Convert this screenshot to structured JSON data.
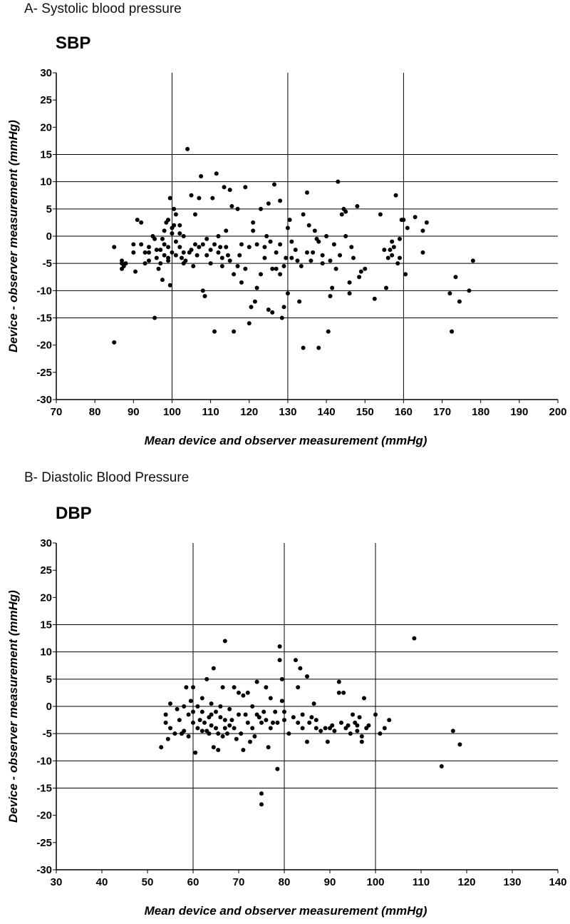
{
  "captions": {
    "a": "A-  Systolic blood pressure",
    "b": "B-  Diastolic Blood Pressure"
  },
  "colors": {
    "points": "#000000",
    "grid": "#000000"
  },
  "chart_data": [
    {
      "type": "scatter",
      "title": "SBP",
      "xlabel": "Mean device and observer measurement (mmHg)",
      "ylabel": "Device - observer measurement (mmHg)",
      "xlim": [
        70,
        200
      ],
      "ylim": [
        -30,
        30
      ],
      "xticks": [
        70,
        80,
        90,
        100,
        110,
        120,
        130,
        140,
        150,
        160,
        170,
        180,
        190,
        200
      ],
      "yticks": [
        30,
        25,
        20,
        15,
        10,
        5,
        0,
        -5,
        -10,
        -15,
        -20,
        -25,
        -30
      ],
      "hgrid": [
        15,
        10,
        5,
        0,
        -5,
        -10,
        -15
      ],
      "vgrid": [
        100,
        130,
        160
      ],
      "points": [
        [
          85,
          -19.5
        ],
        [
          85,
          -2
        ],
        [
          87,
          -4.5
        ],
        [
          87,
          -5
        ],
        [
          87.5,
          -5.5
        ],
        [
          88,
          -5
        ],
        [
          87,
          -6
        ],
        [
          90,
          -1.5
        ],
        [
          90,
          -3
        ],
        [
          90.5,
          -6.5
        ],
        [
          91,
          3
        ],
        [
          92,
          2.5
        ],
        [
          92,
          -1.5
        ],
        [
          93,
          -3
        ],
        [
          93,
          -5
        ],
        [
          94,
          -2
        ],
        [
          94,
          -3
        ],
        [
          94,
          -4.5
        ],
        [
          95,
          0
        ],
        [
          95.5,
          -0.5
        ],
        [
          95.5,
          -15
        ],
        [
          96,
          -4
        ],
        [
          96,
          -2.5
        ],
        [
          96.5,
          -6
        ],
        [
          97,
          -2.5
        ],
        [
          97,
          -5
        ],
        [
          97.5,
          -8
        ],
        [
          97.5,
          -0.5
        ],
        [
          98,
          -1.5
        ],
        [
          98,
          -3.5
        ],
        [
          98,
          1
        ],
        [
          98.5,
          2.5
        ],
        [
          99,
          -4
        ],
        [
          99,
          -2
        ],
        [
          99,
          -4.5
        ],
        [
          99,
          3
        ],
        [
          99.5,
          7
        ],
        [
          99.5,
          -9
        ],
        [
          100,
          -3
        ],
        [
          100,
          1.5
        ],
        [
          100,
          0.5
        ],
        [
          100.5,
          5
        ],
        [
          100.5,
          2
        ],
        [
          101,
          -1
        ],
        [
          101,
          -3.5
        ],
        [
          101,
          4
        ],
        [
          102,
          -2
        ],
        [
          102,
          0.5
        ],
        [
          102,
          2
        ],
        [
          102.5,
          -4
        ],
        [
          103,
          -5
        ],
        [
          103,
          -3
        ],
        [
          103,
          0
        ],
        [
          103.5,
          -4.5
        ],
        [
          104,
          16
        ],
        [
          104.5,
          -3
        ],
        [
          105,
          -2.5
        ],
        [
          105,
          7.5
        ],
        [
          105.5,
          -5.5
        ],
        [
          106,
          -1.5
        ],
        [
          106,
          4
        ],
        [
          106.5,
          -3.5
        ],
        [
          107,
          7
        ],
        [
          107,
          -2
        ],
        [
          107.5,
          11
        ],
        [
          108,
          -10
        ],
        [
          108,
          -1.5
        ],
        [
          108.5,
          -11
        ],
        [
          109,
          -3.5
        ],
        [
          109,
          -0.5
        ],
        [
          110,
          -2.5
        ],
        [
          110,
          -5
        ],
        [
          110.5,
          7
        ],
        [
          111,
          -17.5
        ],
        [
          111,
          -1.5
        ],
        [
          111.5,
          11.5
        ],
        [
          112,
          -3
        ],
        [
          112,
          0
        ],
        [
          112.5,
          -2
        ],
        [
          113,
          -5.5
        ],
        [
          113,
          -4
        ],
        [
          113.5,
          9
        ],
        [
          114,
          -2
        ],
        [
          114,
          1
        ],
        [
          114.5,
          -3.5
        ],
        [
          115,
          8.5
        ],
        [
          115,
          -4.5
        ],
        [
          115.5,
          5.5
        ],
        [
          116,
          -7
        ],
        [
          116,
          -17.5
        ],
        [
          117,
          5
        ],
        [
          117,
          -5.5
        ],
        [
          117.5,
          -3.5
        ],
        [
          118,
          -8.5
        ],
        [
          118,
          -1.5
        ],
        [
          119,
          -6
        ],
        [
          119,
          9
        ],
        [
          120,
          -2
        ],
        [
          120,
          -16
        ],
        [
          120.5,
          -13
        ],
        [
          121,
          2.5
        ],
        [
          121,
          1
        ],
        [
          121.5,
          -12
        ],
        [
          122,
          -1.5
        ],
        [
          122,
          -9.5
        ],
        [
          123,
          -7
        ],
        [
          123,
          5
        ],
        [
          124,
          -2
        ],
        [
          124,
          -4
        ],
        [
          124.5,
          0
        ],
        [
          125,
          -13.5
        ],
        [
          125,
          6
        ],
        [
          125.5,
          -1
        ],
        [
          126,
          -6
        ],
        [
          126,
          -14
        ],
        [
          126.5,
          9.5
        ],
        [
          127,
          -3
        ],
        [
          127,
          -6
        ],
        [
          128,
          -1.5
        ],
        [
          128,
          -7
        ],
        [
          128,
          6.5
        ],
        [
          128.5,
          -15
        ],
        [
          129,
          -5.5
        ],
        [
          129,
          -13
        ],
        [
          129.5,
          -4
        ],
        [
          130,
          -10.5
        ],
        [
          130,
          1.5
        ],
        [
          130.5,
          3
        ],
        [
          131,
          -4
        ],
        [
          131,
          -1
        ],
        [
          132,
          -2.5
        ],
        [
          132.5,
          -4.5
        ],
        [
          133,
          -12
        ],
        [
          133.5,
          -5.5
        ],
        [
          134,
          4
        ],
        [
          134,
          -20.5
        ],
        [
          135,
          8
        ],
        [
          135,
          -3
        ],
        [
          135.5,
          2
        ],
        [
          136,
          -4.5
        ],
        [
          136.5,
          -3
        ],
        [
          137,
          1
        ],
        [
          137.5,
          -0.5
        ],
        [
          138,
          -20.5
        ],
        [
          138,
          -1
        ],
        [
          139,
          -3.5
        ],
        [
          139,
          -5
        ],
        [
          140,
          0
        ],
        [
          140.5,
          -17.5
        ],
        [
          141,
          -4.5
        ],
        [
          141,
          -11
        ],
        [
          141.5,
          -9.5
        ],
        [
          142,
          -1.5
        ],
        [
          142.5,
          -6
        ],
        [
          143,
          10
        ],
        [
          143.5,
          -3.5
        ],
        [
          144,
          4
        ],
        [
          144.5,
          5
        ],
        [
          145,
          0
        ],
        [
          145,
          4.5
        ],
        [
          146,
          -10.5
        ],
        [
          146,
          -8.5
        ],
        [
          146.5,
          -2
        ],
        [
          147,
          -4
        ],
        [
          148,
          5.5
        ],
        [
          148.5,
          -7.5
        ],
        [
          149,
          -6.5
        ],
        [
          150,
          -6
        ],
        [
          152.5,
          -11.5
        ],
        [
          154,
          4
        ],
        [
          155,
          -2.5
        ],
        [
          155.5,
          -9.5
        ],
        [
          156,
          -4
        ],
        [
          156.5,
          -2.5
        ],
        [
          157,
          -3.5
        ],
        [
          157,
          -1
        ],
        [
          157.5,
          -2
        ],
        [
          158,
          7.5
        ],
        [
          158.5,
          -5
        ],
        [
          159,
          -0.5
        ],
        [
          159,
          -4
        ],
        [
          159.5,
          3
        ],
        [
          160,
          3
        ],
        [
          160.5,
          -7
        ],
        [
          161,
          1.5
        ],
        [
          163,
          3.5
        ],
        [
          165,
          1
        ],
        [
          165,
          -3
        ],
        [
          166,
          2.5
        ],
        [
          172,
          -10.5
        ],
        [
          172.5,
          -17.5
        ],
        [
          173.5,
          -7.5
        ],
        [
          174.5,
          -12
        ],
        [
          177,
          -10
        ],
        [
          178,
          -4.5
        ]
      ]
    },
    {
      "type": "scatter",
      "title": "DBP",
      "xlabel": "Mean device and observer measurement (mmHg)",
      "ylabel": "Device - observer measurement (mmHg)",
      "xlim": [
        30,
        140
      ],
      "ylim": [
        -30,
        30
      ],
      "xticks": [
        30,
        40,
        50,
        60,
        70,
        80,
        90,
        100,
        110,
        120,
        130,
        140
      ],
      "yticks": [
        30,
        25,
        20,
        15,
        10,
        5,
        0,
        -5,
        -10,
        -15,
        -20,
        -25,
        -30
      ],
      "hgrid": [
        15,
        10,
        5,
        0,
        -5,
        -10,
        -15
      ],
      "vgrid": [
        60,
        80,
        100
      ],
      "points": [
        [
          53,
          -7.5
        ],
        [
          54,
          -3
        ],
        [
          54,
          -1.5
        ],
        [
          54.5,
          -6
        ],
        [
          55,
          0.5
        ],
        [
          55,
          -4
        ],
        [
          56,
          -5
        ],
        [
          56.5,
          -0.5
        ],
        [
          57,
          -2.5
        ],
        [
          57.5,
          -5
        ],
        [
          58,
          0
        ],
        [
          58,
          -4.5
        ],
        [
          58.5,
          3.5
        ],
        [
          59,
          -1.5
        ],
        [
          59,
          -5.5
        ],
        [
          59.5,
          1
        ],
        [
          60,
          3.5
        ],
        [
          60,
          -1
        ],
        [
          60,
          -3
        ],
        [
          60.5,
          -8.5
        ],
        [
          61,
          0
        ],
        [
          61,
          -4
        ],
        [
          61.5,
          -2.5
        ],
        [
          62,
          -1
        ],
        [
          62,
          -4.5
        ],
        [
          62,
          1.5
        ],
        [
          62.5,
          -3
        ],
        [
          63,
          5
        ],
        [
          63,
          -4.5
        ],
        [
          63.5,
          -2
        ],
        [
          63.5,
          -5
        ],
        [
          64,
          0.5
        ],
        [
          64,
          -1.5
        ],
        [
          64,
          -3.5
        ],
        [
          64.5,
          7
        ],
        [
          64.5,
          -7.5
        ],
        [
          65,
          -1
        ],
        [
          65,
          -4
        ],
        [
          65.5,
          -5
        ],
        [
          65.5,
          -8
        ],
        [
          66,
          0
        ],
        [
          66,
          -2
        ],
        [
          66.5,
          3.5
        ],
        [
          66.5,
          -5.5
        ],
        [
          67,
          12
        ],
        [
          67,
          -2.5
        ],
        [
          67,
          -4
        ],
        [
          67.5,
          -5
        ],
        [
          68,
          -0.5
        ],
        [
          68,
          -3.5
        ],
        [
          68.5,
          -2.5
        ],
        [
          69,
          3.5
        ],
        [
          69,
          -4
        ],
        [
          69.5,
          -6
        ],
        [
          70,
          2.5
        ],
        [
          70,
          -1.5
        ],
        [
          70.5,
          -5
        ],
        [
          71,
          2
        ],
        [
          71,
          -8
        ],
        [
          71.5,
          -1.5
        ],
        [
          72,
          2.5
        ],
        [
          72,
          -3
        ],
        [
          72.5,
          -6.5
        ],
        [
          73,
          0
        ],
        [
          73,
          -4
        ],
        [
          73.5,
          -5.5
        ],
        [
          74,
          -1.5
        ],
        [
          74,
          4.5
        ],
        [
          74.5,
          -2
        ],
        [
          75,
          -16
        ],
        [
          75,
          -18
        ],
        [
          75,
          -3
        ],
        [
          75.5,
          -1
        ],
        [
          76,
          3.5
        ],
        [
          76,
          -2.5
        ],
        [
          76.5,
          -7.5
        ],
        [
          77,
          -4
        ],
        [
          77,
          1.5
        ],
        [
          77.5,
          -3
        ],
        [
          78,
          -1
        ],
        [
          78.5,
          -11.5
        ],
        [
          78.5,
          -3
        ],
        [
          79,
          8.5
        ],
        [
          79,
          11
        ],
        [
          79.5,
          5
        ],
        [
          79.5,
          1
        ],
        [
          80,
          -2.5
        ],
        [
          80,
          -1
        ],
        [
          81,
          -5
        ],
        [
          82,
          -2
        ],
        [
          82.5,
          8.5
        ],
        [
          83,
          -3
        ],
        [
          83,
          3.5
        ],
        [
          83.5,
          7
        ],
        [
          84,
          -4
        ],
        [
          84,
          -1.5
        ],
        [
          85,
          5.5
        ],
        [
          85,
          -6.5
        ],
        [
          85.5,
          -3
        ],
        [
          86,
          -2
        ],
        [
          86.5,
          0.5
        ],
        [
          87,
          -2.5
        ],
        [
          87,
          -4
        ],
        [
          88,
          -4.5
        ],
        [
          89,
          -4
        ],
        [
          89.5,
          -6.5
        ],
        [
          90,
          -4
        ],
        [
          90.5,
          -3.5
        ],
        [
          91,
          -4.5
        ],
        [
          92,
          4.5
        ],
        [
          92,
          2.5
        ],
        [
          92.5,
          -3
        ],
        [
          93,
          2.5
        ],
        [
          93.5,
          -4
        ],
        [
          94,
          -3.5
        ],
        [
          94.5,
          -5
        ],
        [
          95,
          -1.5
        ],
        [
          95.5,
          -3
        ],
        [
          96,
          -3.5
        ],
        [
          96,
          -4.5
        ],
        [
          96.5,
          -2
        ],
        [
          97,
          -5.5
        ],
        [
          97,
          -6.5
        ],
        [
          97.5,
          1.5
        ],
        [
          98,
          -4
        ],
        [
          98.5,
          -3.5
        ],
        [
          100,
          -1.5
        ],
        [
          101,
          -5
        ],
        [
          102,
          -4
        ],
        [
          103,
          -2.5
        ],
        [
          108.5,
          12.5
        ],
        [
          114.5,
          -11
        ],
        [
          117,
          -4.5
        ],
        [
          118.5,
          -7
        ]
      ]
    }
  ]
}
